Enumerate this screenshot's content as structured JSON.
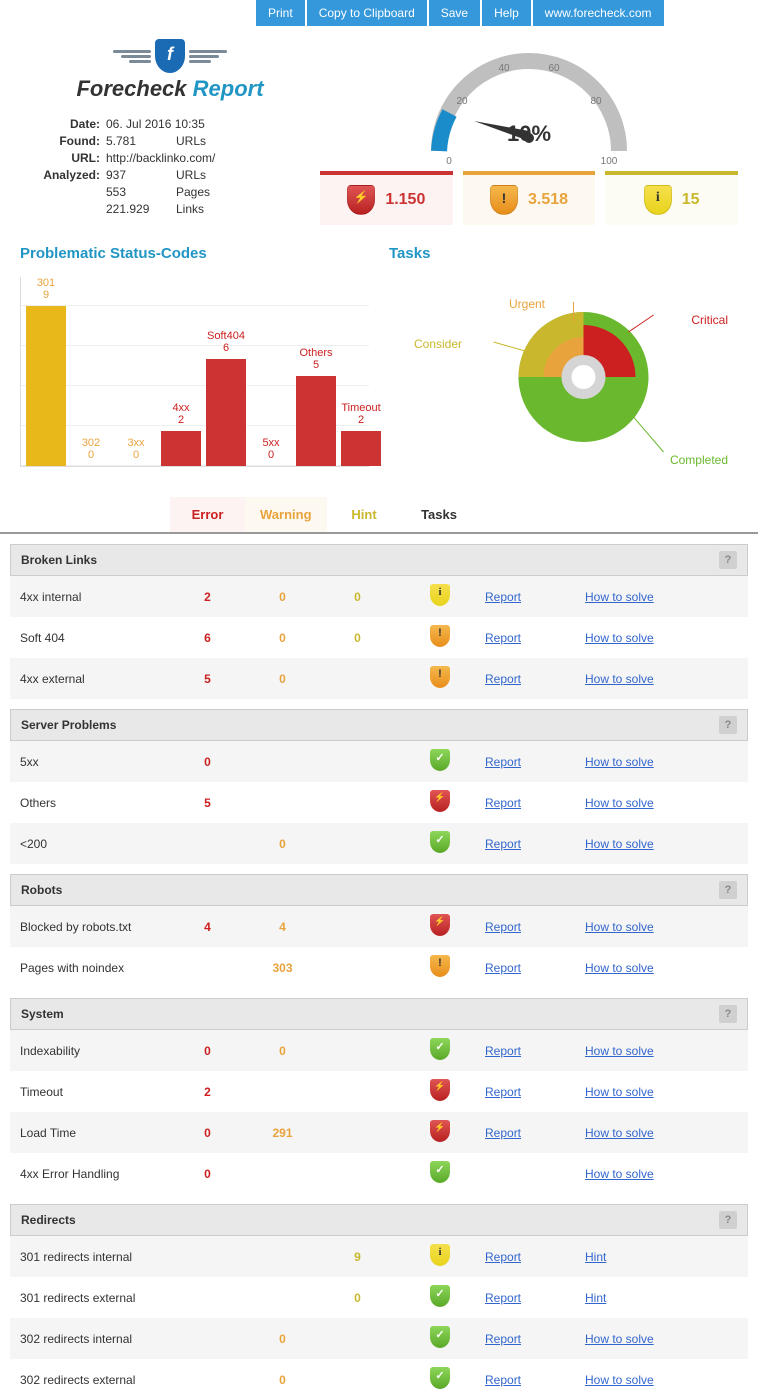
{
  "toolbar": {
    "print": "Print",
    "copy": "Copy to Clipboard",
    "save": "Save",
    "help": "Help",
    "site": "www.forecheck.com"
  },
  "brand": {
    "fore": "Forecheck ",
    "report": "Report"
  },
  "meta": {
    "date_label": "Date",
    "date_value": "06. Jul 2016 10:35",
    "found_label": "Found",
    "found_value": "5.781",
    "found_unit": "URLs",
    "url_label": "URL",
    "url_value": "http://backlinko.com/",
    "analyzed_label": "Analyzed",
    "analyzed_url_value": "937",
    "analyzed_url_unit": "URLs",
    "analyzed_pages_value": "553",
    "analyzed_pages_unit": "Pages",
    "analyzed_links_value": "221.929",
    "analyzed_links_unit": "Links"
  },
  "gauge": {
    "percent_label": "10%",
    "percent_value": 10,
    "ticks": [
      "0",
      "20",
      "40",
      "60",
      "80",
      "100"
    ],
    "fill_color": "#1a8cc9",
    "track_color": "#bfbfbf",
    "tick_color": "#777"
  },
  "stats": {
    "error_value": "1.150",
    "warning_value": "3.518",
    "hint_value": "15"
  },
  "status_chart": {
    "title": "Problematic Status-Codes",
    "max_value": 9,
    "bars": [
      {
        "label": "301",
        "value": 9,
        "color": "#e8b81a",
        "label_color": "#e8a33d",
        "height_pct": 100
      },
      {
        "label": "302",
        "value": 0,
        "color": "#cc3333",
        "label_color": "#e8a33d",
        "height_pct": 0
      },
      {
        "label": "3xx",
        "value": 0,
        "color": "#cc3333",
        "label_color": "#e8a33d",
        "height_pct": 0
      },
      {
        "label": "4xx",
        "value": 2,
        "color": "#cc3333",
        "label_color": "#cc2020",
        "height_pct": 22
      },
      {
        "label": "Soft404",
        "value": 6,
        "color": "#cc3333",
        "label_color": "#cc2020",
        "height_pct": 67
      },
      {
        "label": "5xx",
        "value": 0,
        "color": "#cc3333",
        "label_color": "#cc2020",
        "height_pct": 0
      },
      {
        "label": "Others",
        "value": 5,
        "color": "#cc3333",
        "label_color": "#cc2020",
        "height_pct": 56
      },
      {
        "label": "Timeout",
        "value": 2,
        "color": "#cc3333",
        "label_color": "#cc2020",
        "height_pct": 22
      }
    ]
  },
  "tasks_chart": {
    "title": "Tasks",
    "labels": {
      "urgent": "Urgent",
      "critical": "Critical",
      "consider": "Consider",
      "completed": "Completed"
    },
    "colors": {
      "urgent": "#e8a33d",
      "critical": "#cc2020",
      "consider": "#c9b82e",
      "completed": "#6ab82e",
      "inner_ring": "#d5d5d5",
      "center": "#ffffff"
    }
  },
  "tabs": {
    "error": "Error",
    "warning": "Warning",
    "hint": "Hint",
    "tasks": "Tasks"
  },
  "links": {
    "report": "Report",
    "howto": "How to solve",
    "hint": "Hint"
  },
  "sections": [
    {
      "title": "Broken Links",
      "rows": [
        {
          "label": "4xx internal",
          "err": "2",
          "warn": "0",
          "hint": "0",
          "icon": "yellow",
          "report": true,
          "howto": "howto"
        },
        {
          "label": "Soft 404",
          "err": "6",
          "warn": "0",
          "hint": "0",
          "icon": "orange",
          "report": true,
          "howto": "howto"
        },
        {
          "label": "4xx external",
          "err": "5",
          "warn": "0",
          "hint": "",
          "icon": "orange",
          "report": true,
          "howto": "howto"
        }
      ]
    },
    {
      "title": "Server Problems",
      "rows": [
        {
          "label": "5xx",
          "err": "0",
          "warn": "",
          "hint": "",
          "icon": "green",
          "report": true,
          "howto": "howto"
        },
        {
          "label": "Others",
          "err": "5",
          "warn": "",
          "hint": "",
          "icon": "red",
          "report": true,
          "howto": "howto"
        },
        {
          "label": "<200",
          "err": "",
          "warn": "0",
          "hint": "",
          "icon": "green",
          "report": true,
          "howto": "howto"
        }
      ]
    },
    {
      "title": "Robots",
      "rows": [
        {
          "label": "Blocked by robots.txt",
          "err": "4",
          "warn": "4",
          "hint": "",
          "icon": "red",
          "report": true,
          "howto": "howto"
        },
        {
          "label": "Pages with noindex",
          "err": "",
          "warn": "303",
          "hint": "",
          "icon": "orange",
          "report": true,
          "howto": "howto"
        }
      ]
    },
    {
      "title": "System",
      "rows": [
        {
          "label": "Indexability",
          "err": "0",
          "warn": "0",
          "hint": "",
          "icon": "green",
          "report": true,
          "howto": "howto"
        },
        {
          "label": "Timeout",
          "err": "2",
          "warn": "",
          "hint": "",
          "icon": "red",
          "report": true,
          "howto": "howto"
        },
        {
          "label": "Load Time",
          "err": "0",
          "warn": "291",
          "hint": "",
          "icon": "red",
          "report": true,
          "howto": "howto"
        },
        {
          "label": "4xx Error Handling",
          "err": "0",
          "warn": "",
          "hint": "",
          "icon": "green",
          "report": false,
          "howto": "howto"
        }
      ]
    },
    {
      "title": "Redirects",
      "rows": [
        {
          "label": "301 redirects internal",
          "err": "",
          "warn": "",
          "hint": "9",
          "icon": "yellow",
          "report": true,
          "howto": "hint"
        },
        {
          "label": "301 redirects external",
          "err": "",
          "warn": "",
          "hint": "0",
          "icon": "green",
          "report": true,
          "howto": "hint"
        },
        {
          "label": "302 redirects internal",
          "err": "",
          "warn": "0",
          "hint": "",
          "icon": "green",
          "report": true,
          "howto": "howto"
        },
        {
          "label": "302 redirects external",
          "err": "",
          "warn": "0",
          "hint": "",
          "icon": "green",
          "report": true,
          "howto": "howto"
        }
      ]
    }
  ]
}
